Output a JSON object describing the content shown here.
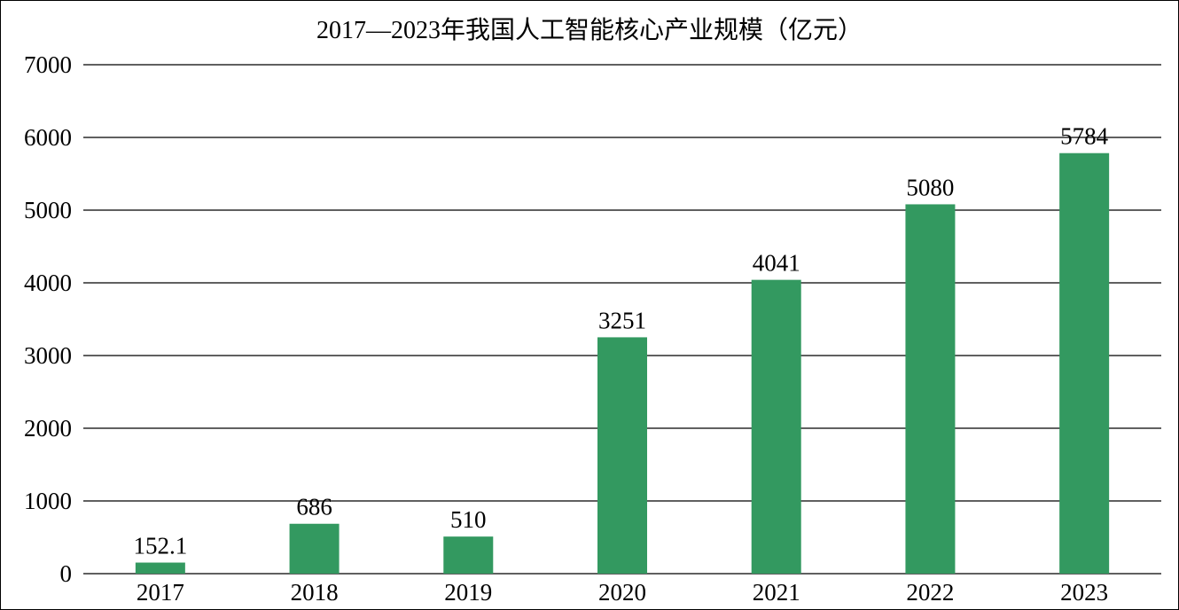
{
  "chart_data": {
    "type": "bar",
    "title": "2017—2023年我国人工智能核心产业规模（亿元）",
    "xlabel": "",
    "ylabel": "",
    "categories": [
      "2017",
      "2018",
      "2019",
      "2020",
      "2021",
      "2022",
      "2023"
    ],
    "values": [
      152.1,
      686,
      510,
      3251,
      4041,
      5080,
      5784
    ],
    "data_labels": [
      "152.1",
      "686",
      "510",
      "3251",
      "4041",
      "5080",
      "5784"
    ],
    "ylim": [
      0,
      7000
    ],
    "yticks": [
      0,
      1000,
      2000,
      3000,
      4000,
      5000,
      6000,
      7000
    ],
    "ytick_labels": [
      "0",
      "1000",
      "2000",
      "3000",
      "4000",
      "5000",
      "6000",
      "7000"
    ],
    "grid": true,
    "legend": "none",
    "colors": {
      "bar": "#339960",
      "grid": "#000000",
      "text": "#000000"
    }
  }
}
